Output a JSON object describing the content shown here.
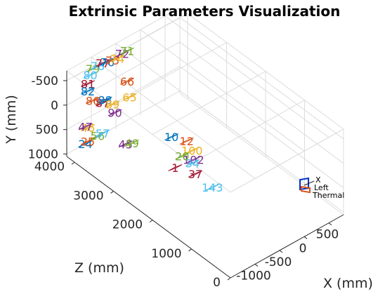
{
  "chart_data": {
    "type": "scatter",
    "subtype": "3d-extrinsics",
    "title": "Extrinsic Parameters Visualization",
    "xlabel": "X (mm)",
    "ylabel": "Y (mm)",
    "zlabel": "Z (mm)",
    "xlim": [
      -1500,
      800
    ],
    "ylim": [
      -700,
      1050
    ],
    "zlim": [
      0,
      4200
    ],
    "y_reversed": true,
    "x_ticks": [
      "-1000",
      "-500",
      "0",
      "500"
    ],
    "x_tick_values": [
      -1000,
      -500,
      0,
      500
    ],
    "y_ticks": [
      "-500",
      "0",
      "500",
      "1000"
    ],
    "y_tick_values": [
      -500,
      0,
      500,
      1000
    ],
    "z_ticks": [
      "0",
      "1000",
      "2000",
      "3000",
      "4000"
    ],
    "z_tick_values": [
      0,
      1000,
      2000,
      3000,
      4000
    ],
    "grid": true,
    "camera_labels": [
      "X",
      "Left",
      "Thermal"
    ],
    "palette": [
      "#0072BD",
      "#D95319",
      "#EDB120",
      "#7E2F8E",
      "#77AC30",
      "#4DBEEE",
      "#A2142F"
    ],
    "patterns": [
      {
        "id": "24",
        "x": -1200,
        "y": 900,
        "z": 4000
      },
      {
        "id": "25",
        "x": -1150,
        "y": 880,
        "z": 4000
      },
      {
        "id": "46",
        "x": -1150,
        "y": 600,
        "z": 4000
      },
      {
        "id": "47",
        "x": -1200,
        "y": 550,
        "z": 4000
      },
      {
        "id": "56",
        "x": -950,
        "y": 880,
        "z": 4000
      },
      {
        "id": "57",
        "x": -850,
        "y": 880,
        "z": 4000
      },
      {
        "id": "87",
        "x": -850,
        "y": 260,
        "z": 4000
      },
      {
        "id": "88",
        "x": -800,
        "y": 230,
        "z": 4000
      },
      {
        "id": "86",
        "x": -1050,
        "y": 100,
        "z": 4000
      },
      {
        "id": "89",
        "x": -650,
        "y": 400,
        "z": 4000
      },
      {
        "id": "90",
        "x": -600,
        "y": 600,
        "z": 4000
      },
      {
        "id": "79",
        "x": -1050,
        "y": -550,
        "z": 4000
      },
      {
        "id": "78",
        "x": -950,
        "y": -550,
        "z": 4000
      },
      {
        "id": "77",
        "x": -850,
        "y": -550,
        "z": 4000
      },
      {
        "id": "76",
        "x": -750,
        "y": -520,
        "z": 4000
      },
      {
        "id": "75",
        "x": -650,
        "y": -500,
        "z": 4000
      },
      {
        "id": "74",
        "x": -550,
        "y": -480,
        "z": 4000
      },
      {
        "id": "72",
        "x": -450,
        "y": -520,
        "z": 4000
      },
      {
        "id": "71",
        "x": -350,
        "y": -520,
        "z": 4000
      },
      {
        "id": "80",
        "x": -1100,
        "y": -450,
        "z": 4000
      },
      {
        "id": "81",
        "x": -1150,
        "y": -300,
        "z": 4000
      },
      {
        "id": "82",
        "x": -1150,
        "y": -150,
        "z": 4000
      },
      {
        "id": "66",
        "x": -350,
        "y": 100,
        "z": 4000
      },
      {
        "id": "65",
        "x": -300,
        "y": 450,
        "z": 4000
      },
      {
        "id": "45",
        "x": -700,
        "y": 950,
        "z": 3600
      },
      {
        "id": "49",
        "x": -650,
        "y": 900,
        "z": 3500
      },
      {
        "id": "143",
        "x": -600,
        "y": 650,
        "z": 1500
      },
      {
        "id": "1",
        "x": -800,
        "y": 550,
        "z": 2200
      },
      {
        "id": "10",
        "x": -400,
        "y": 500,
        "z": 2800
      },
      {
        "id": "12",
        "x": -250,
        "y": 550,
        "z": 2600
      },
      {
        "id": "100",
        "x": -300,
        "y": 600,
        "z": 2400
      },
      {
        "id": "102",
        "x": -350,
        "y": 700,
        "z": 2300
      },
      {
        "id": "20",
        "x": -500,
        "y": 600,
        "z": 2400
      },
      {
        "id": "34",
        "x": -450,
        "y": 650,
        "z": 2200
      },
      {
        "id": "37",
        "x": -550,
        "y": 700,
        "z": 2000
      }
    ]
  }
}
